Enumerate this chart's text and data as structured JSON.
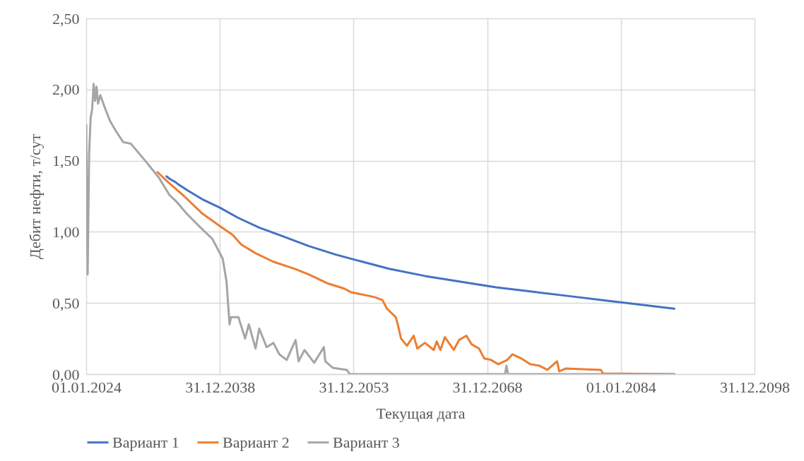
{
  "chart_data": {
    "type": "line",
    "xlabel": "Текущая дата",
    "ylabel": "Дебит нефти, т/сут",
    "xlim": [
      "2024-01-01",
      "2098-12-31"
    ],
    "xticks": [
      {
        "value": "2024-01-01",
        "label": "01.01.2024"
      },
      {
        "value": "2038-12-31",
        "label": "31.12.2038"
      },
      {
        "value": "2053-12-31",
        "label": "31.12.2053"
      },
      {
        "value": "2068-12-31",
        "label": "31.12.2068"
      },
      {
        "value": "2084-01-01",
        "label": "01.01.2084"
      },
      {
        "value": "2098-12-31",
        "label": "31.12.2098"
      }
    ],
    "ylim": [
      0,
      2.5
    ],
    "yticks": [
      {
        "value": 0,
        "label": "0,00"
      },
      {
        "value": 0.5,
        "label": "0,50"
      },
      {
        "value": 1,
        "label": "1,00"
      },
      {
        "value": 1.5,
        "label": "1,50"
      },
      {
        "value": 2,
        "label": "2,00"
      },
      {
        "value": 2.5,
        "label": "2,50"
      }
    ],
    "grid": true,
    "legend": "bottom",
    "marker": "none",
    "line_style": "solid",
    "series": [
      {
        "name": "Вариант 1",
        "color": "#4472c4",
        "x": [
          "2033-01",
          "2033-06",
          "2034-01",
          "2034-06",
          "2035-06",
          "2037-01",
          "2039-01",
          "2041-01",
          "2043-06",
          "2046-01",
          "2049-01",
          "2052-01",
          "2055-01",
          "2058-01",
          "2062-01",
          "2066-01",
          "2070-01",
          "2074-01",
          "2078-01",
          "2082-01",
          "2086-01",
          "2090-01"
        ],
        "values": [
          1.39,
          1.37,
          1.35,
          1.33,
          1.29,
          1.23,
          1.17,
          1.1,
          1.03,
          0.97,
          0.9,
          0.84,
          0.79,
          0.74,
          0.69,
          0.65,
          0.61,
          0.58,
          0.55,
          0.52,
          0.49,
          0.46
        ]
      },
      {
        "name": "Вариант 2",
        "color": "#ed7d31",
        "x": [
          "2032-01",
          "2033-01",
          "2035-01",
          "2037-01",
          "2039-01",
          "2040-06",
          "2041-06",
          "2043-01",
          "2045-01",
          "2047-06",
          "2049-01",
          "2051-01",
          "2053-01",
          "2053-10",
          "2055-10",
          "2056-06",
          "2057-04",
          "2057-10",
          "2058-10",
          "2059-01",
          "2059-05",
          "2060-01",
          "2060-10",
          "2061-03",
          "2062-01",
          "2063-01",
          "2063-05",
          "2063-10",
          "2064-04",
          "2065-04",
          "2065-11",
          "2066-09",
          "2067-04",
          "2068-02",
          "2068-09",
          "2069-06",
          "2070-04",
          "2071-04",
          "2071-11",
          "2072-11",
          "2073-11",
          "2074-11",
          "2075-10",
          "2076-11",
          "2077-02",
          "2077-11",
          "2081-10",
          "2082-01",
          "2090-01"
        ],
        "values": [
          1.42,
          1.36,
          1.25,
          1.13,
          1.04,
          0.98,
          0.91,
          0.85,
          0.79,
          0.74,
          0.7,
          0.64,
          0.6,
          0.575,
          0.55,
          0.54,
          0.52,
          0.46,
          0.4,
          0.34,
          0.25,
          0.2,
          0.27,
          0.18,
          0.22,
          0.17,
          0.23,
          0.17,
          0.26,
          0.17,
          0.24,
          0.27,
          0.21,
          0.18,
          0.11,
          0.1,
          0.07,
          0.1,
          0.14,
          0.11,
          0.07,
          0.06,
          0.03,
          0.09,
          0.02,
          0.04,
          0.03,
          0.005,
          0
        ]
      },
      {
        "name": "Вариант 3",
        "color": "#a5a5a5",
        "x": [
          "2024-01",
          "2024-03",
          "2024-05",
          "2024-07",
          "2024-09",
          "2024-11",
          "2025-01",
          "2025-03",
          "2025-05",
          "2025-08",
          "2026-03",
          "2026-09",
          "2027-06",
          "2028-03",
          "2029-01",
          "2030-10",
          "2032-03",
          "2033-05",
          "2034-03",
          "2035-04",
          "2036-11",
          "2038-03",
          "2038-10",
          "2039-05",
          "2039-10",
          "2040-02",
          "2040-04",
          "2041-02",
          "2041-11",
          "2042-04",
          "2043-01",
          "2043-06",
          "2044-04",
          "2045-01",
          "2045-09",
          "2046-07",
          "2047-07",
          "2047-11",
          "2048-07",
          "2049-08",
          "2050-09",
          "2050-11",
          "2051-09",
          "2053-04",
          "2053-08",
          "2071-01",
          "2071-03",
          "2071-05",
          "2090-01"
        ],
        "values": [
          1.75,
          0.7,
          1.55,
          1.8,
          1.86,
          2.04,
          1.92,
          2.02,
          1.9,
          1.96,
          1.86,
          1.78,
          1.7,
          1.63,
          1.62,
          1.49,
          1.38,
          1.26,
          1.21,
          1.13,
          1.03,
          0.95,
          0.88,
          0.81,
          0.65,
          0.35,
          0.4,
          0.4,
          0.25,
          0.35,
          0.18,
          0.32,
          0.19,
          0.22,
          0.14,
          0.1,
          0.24,
          0.09,
          0.17,
          0.08,
          0.19,
          0.09,
          0.045,
          0.03,
          0,
          0,
          0.06,
          0,
          0
        ]
      }
    ]
  }
}
